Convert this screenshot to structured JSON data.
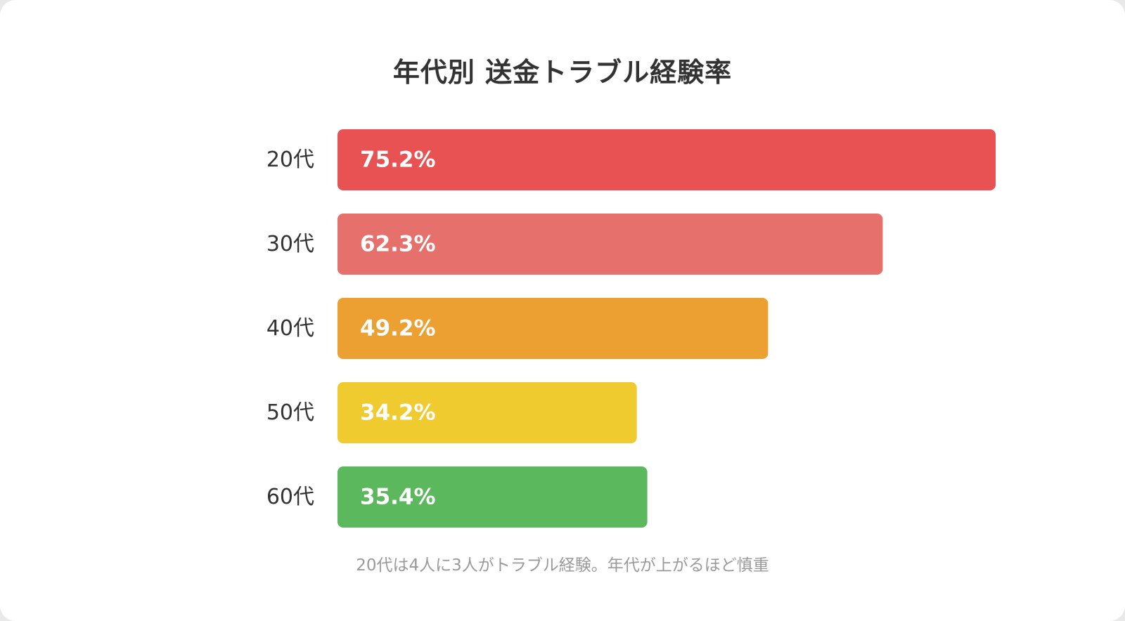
{
  "chart_data": {
    "type": "bar",
    "orientation": "horizontal",
    "title": "年代別 送金トラブル経験率",
    "categories": [
      "20代",
      "30代",
      "40代",
      "50代",
      "60代"
    ],
    "values": [
      75.2,
      62.3,
      49.2,
      34.2,
      35.4
    ],
    "value_labels": [
      "75.2%",
      "62.3%",
      "49.2%",
      "34.2%",
      "35.4%"
    ],
    "colors": [
      "#e85252",
      "#e6706b",
      "#eda032",
      "#f0cb30",
      "#5cb85c"
    ],
    "xlim": [
      0,
      75.2
    ],
    "grid": false,
    "legend": "none",
    "caption": "20代は4人に3人がトラブル経験。年代が上がるほど慎重"
  }
}
